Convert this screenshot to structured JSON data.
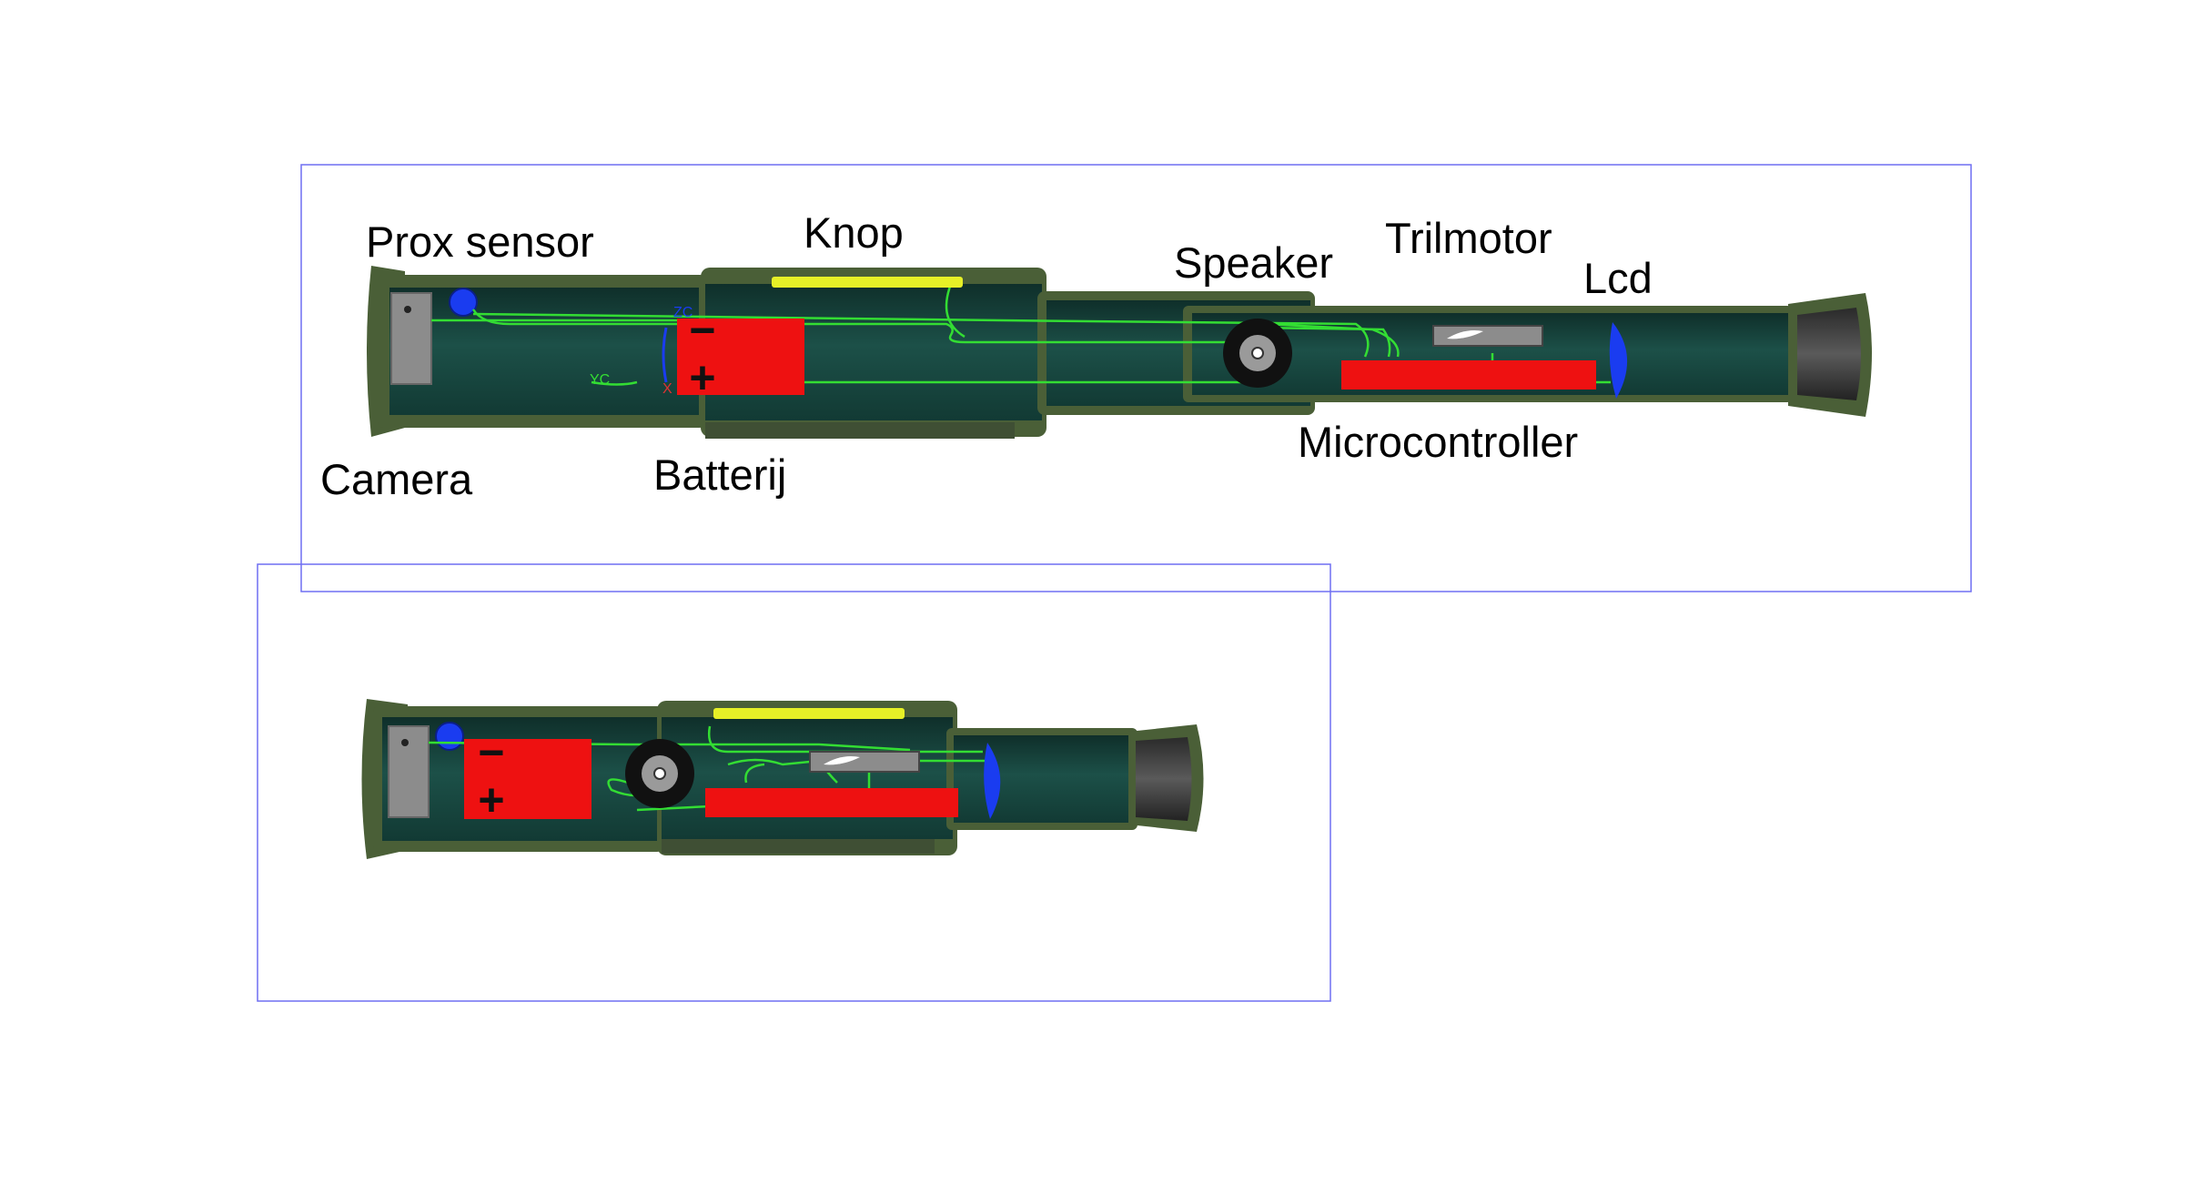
{
  "labels": {
    "prox_sensor": "Prox sensor",
    "knop": "Knop",
    "speaker": "Speaker",
    "trilmotor": "Trilmotor",
    "lcd": "Lcd",
    "camera": "Camera",
    "batterij": "Batterij",
    "microcontroller": "Microcontroller"
  },
  "axis_markers": {
    "zc": "ZC",
    "yc": "YC",
    "x": "X"
  },
  "battery_symbols": {
    "minus": "−",
    "plus": "+"
  },
  "colors": {
    "frame_border": "#6f6ff2",
    "housing_outer": "#4a5f37",
    "housing_inner": "#17453f",
    "battery": "#ee1111",
    "microcontroller": "#ee1111",
    "button": "#e6f027",
    "prox_sensor": "#1a3cf0",
    "lcd": "#1a3cf0",
    "wire": "#33dd33",
    "camera": "#8c8c8c",
    "speaker": "#111111",
    "motor": "#8c8c8c"
  },
  "views": [
    "extended",
    "collapsed"
  ]
}
